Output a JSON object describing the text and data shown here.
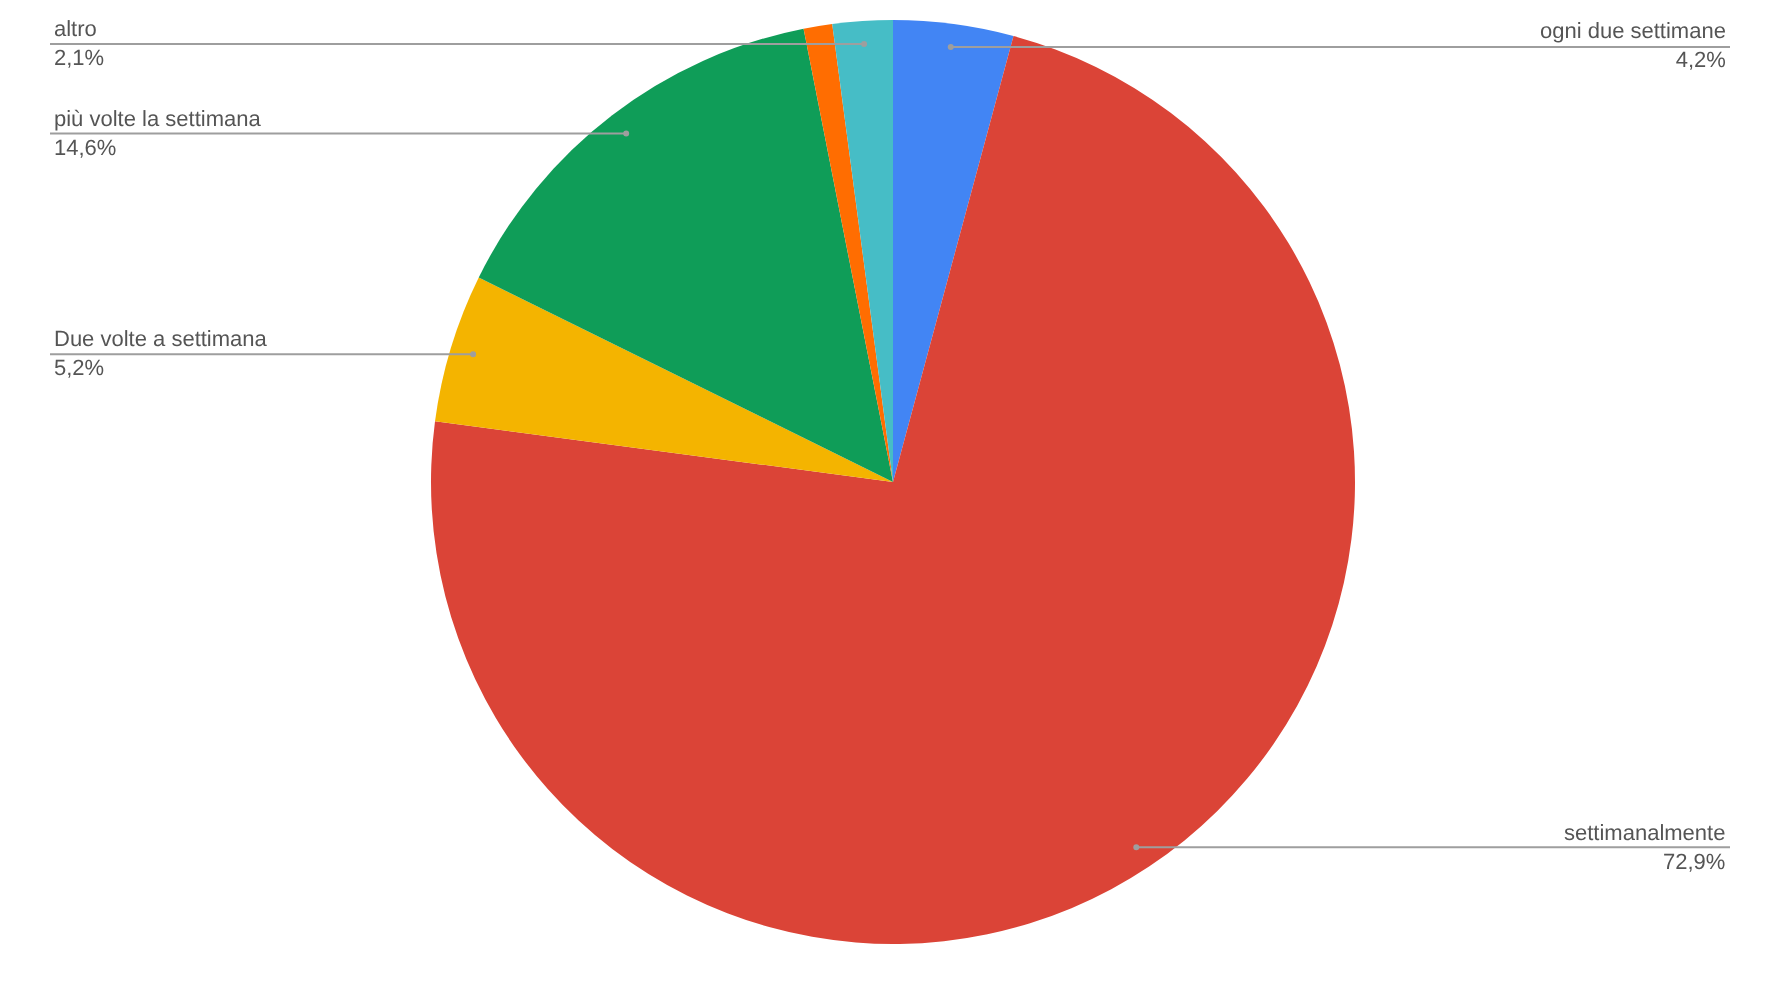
{
  "chart_data": {
    "type": "pie",
    "categories": [
      "ogni due settimane",
      "settimanalmente",
      "Due volte a settimana",
      "più volte la settimana",
      null,
      "altro"
    ],
    "values": [
      4.2,
      72.9,
      5.2,
      14.6,
      1.0,
      2.1
    ],
    "value_labels": [
      "4,2%",
      "72,9%",
      "5,2%",
      "14,6%",
      null,
      "2,1%"
    ],
    "colors": [
      "#4285f4",
      "#db4437",
      "#f4b400",
      "#0f9d58",
      "#ff6d01",
      "#46bdc6"
    ],
    "legend": false
  }
}
